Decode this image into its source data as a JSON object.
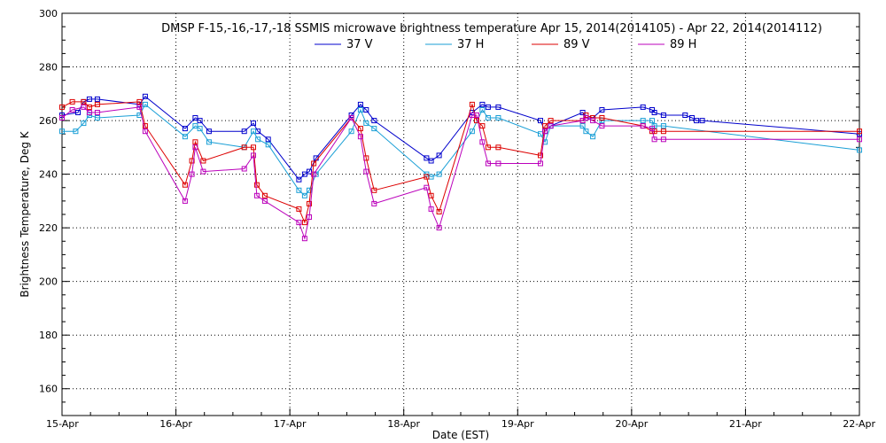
{
  "chart_data": {
    "type": "line",
    "title": "DMSP F-15,-16,-17,-18 SSMIS microwave brightness temperature Apr 15, 2014(2014105) - Apr 22, 2014(2014112)",
    "xlabel": "Date (EST)",
    "ylabel": "Brightness Temperature, Deg K",
    "xlim": [
      0,
      7
    ],
    "ylim": [
      150,
      300
    ],
    "yticks": [
      160,
      180,
      200,
      220,
      240,
      260,
      280,
      300
    ],
    "xtick_labels": [
      "15-Apr",
      "16-Apr",
      "17-Apr",
      "18-Apr",
      "19-Apr",
      "20-Apr",
      "21-Apr",
      "22-Apr"
    ],
    "grid": true,
    "legend_position": "top-center",
    "series": [
      {
        "name": "37 V",
        "color": "#0000cc",
        "x": [
          0.0,
          0.14,
          0.19,
          0.24,
          0.31,
          0.68,
          0.73,
          1.08,
          1.17,
          1.21,
          1.29,
          1.6,
          1.68,
          1.72,
          1.81,
          2.08,
          2.13,
          2.17,
          2.23,
          2.54,
          2.62,
          2.67,
          2.74,
          3.2,
          3.24,
          3.31,
          3.6,
          3.69,
          3.74,
          3.83,
          4.2,
          4.24,
          4.29,
          4.57,
          4.6,
          4.66,
          4.74,
          5.1,
          5.18,
          5.2,
          5.28,
          5.47,
          5.53,
          5.57,
          5.62,
          7.0
        ],
        "y": [
          262,
          263,
          267,
          268,
          268,
          266,
          269,
          257,
          261,
          260,
          256,
          256,
          259,
          256,
          253,
          238,
          240,
          241,
          246,
          262,
          266,
          264,
          260,
          246,
          245,
          247,
          263,
          266,
          265,
          265,
          260,
          256,
          258,
          263,
          261,
          261,
          264,
          265,
          264,
          263,
          262,
          262,
          261,
          260,
          260,
          255
        ]
      },
      {
        "name": "37 H",
        "color": "#1a9fd6",
        "x": [
          0.0,
          0.12,
          0.19,
          0.24,
          0.31,
          0.68,
          0.73,
          1.08,
          1.17,
          1.21,
          1.29,
          1.6,
          1.68,
          1.72,
          1.81,
          2.08,
          2.13,
          2.17,
          2.23,
          2.54,
          2.62,
          2.67,
          2.74,
          3.2,
          3.24,
          3.31,
          3.6,
          3.69,
          3.74,
          3.83,
          4.2,
          4.24,
          4.29,
          4.57,
          4.6,
          4.66,
          4.74,
          5.1,
          5.18,
          5.2,
          5.28,
          7.0
        ],
        "y": [
          256,
          256,
          259,
          262,
          261,
          262,
          266,
          254,
          258,
          257,
          252,
          250,
          256,
          253,
          251,
          234,
          232,
          234,
          240,
          256,
          264,
          259,
          257,
          240,
          239,
          240,
          256,
          264,
          261,
          261,
          255,
          252,
          258,
          258,
          256,
          254,
          260,
          260,
          260,
          258,
          258,
          249
        ]
      },
      {
        "name": "89 V",
        "color": "#dd0000",
        "x": [
          0.0,
          0.09,
          0.19,
          0.24,
          0.31,
          0.68,
          0.73,
          1.08,
          1.14,
          1.17,
          1.24,
          1.6,
          1.68,
          1.71,
          1.78,
          2.08,
          2.13,
          2.17,
          2.21,
          2.54,
          2.62,
          2.67,
          2.74,
          3.2,
          3.24,
          3.31,
          3.6,
          3.64,
          3.69,
          3.74,
          3.83,
          4.2,
          4.24,
          4.29,
          4.57,
          4.6,
          4.66,
          4.74,
          5.1,
          5.18,
          5.2,
          5.28,
          7.0
        ],
        "y": [
          265,
          267,
          267,
          265,
          266,
          267,
          258,
          236,
          245,
          252,
          245,
          250,
          250,
          236,
          232,
          227,
          222,
          229,
          244,
          261,
          257,
          246,
          234,
          239,
          232,
          226,
          266,
          260,
          258,
          250,
          250,
          247,
          258,
          260,
          260,
          262,
          261,
          261,
          258,
          256,
          256,
          256,
          256
        ]
      },
      {
        "name": "89 H",
        "color": "#bb00bb",
        "x": [
          0.0,
          0.09,
          0.19,
          0.24,
          0.31,
          0.68,
          0.73,
          1.08,
          1.14,
          1.17,
          1.24,
          1.6,
          1.68,
          1.71,
          1.78,
          2.08,
          2.13,
          2.17,
          2.21,
          2.54,
          2.62,
          2.67,
          2.74,
          3.2,
          3.24,
          3.31,
          3.6,
          3.64,
          3.69,
          3.74,
          3.83,
          4.2,
          4.24,
          4.29,
          4.57,
          4.6,
          4.66,
          4.74,
          5.1,
          5.18,
          5.2,
          5.28,
          7.0
        ],
        "y": [
          261,
          264,
          265,
          263,
          263,
          265,
          256,
          230,
          240,
          250,
          241,
          242,
          247,
          232,
          230,
          222,
          216,
          224,
          240,
          261,
          254,
          241,
          229,
          235,
          227,
          220,
          262,
          262,
          252,
          244,
          244,
          244,
          256,
          258,
          260,
          261,
          260,
          258,
          258,
          257,
          253,
          253,
          253
        ]
      }
    ]
  }
}
